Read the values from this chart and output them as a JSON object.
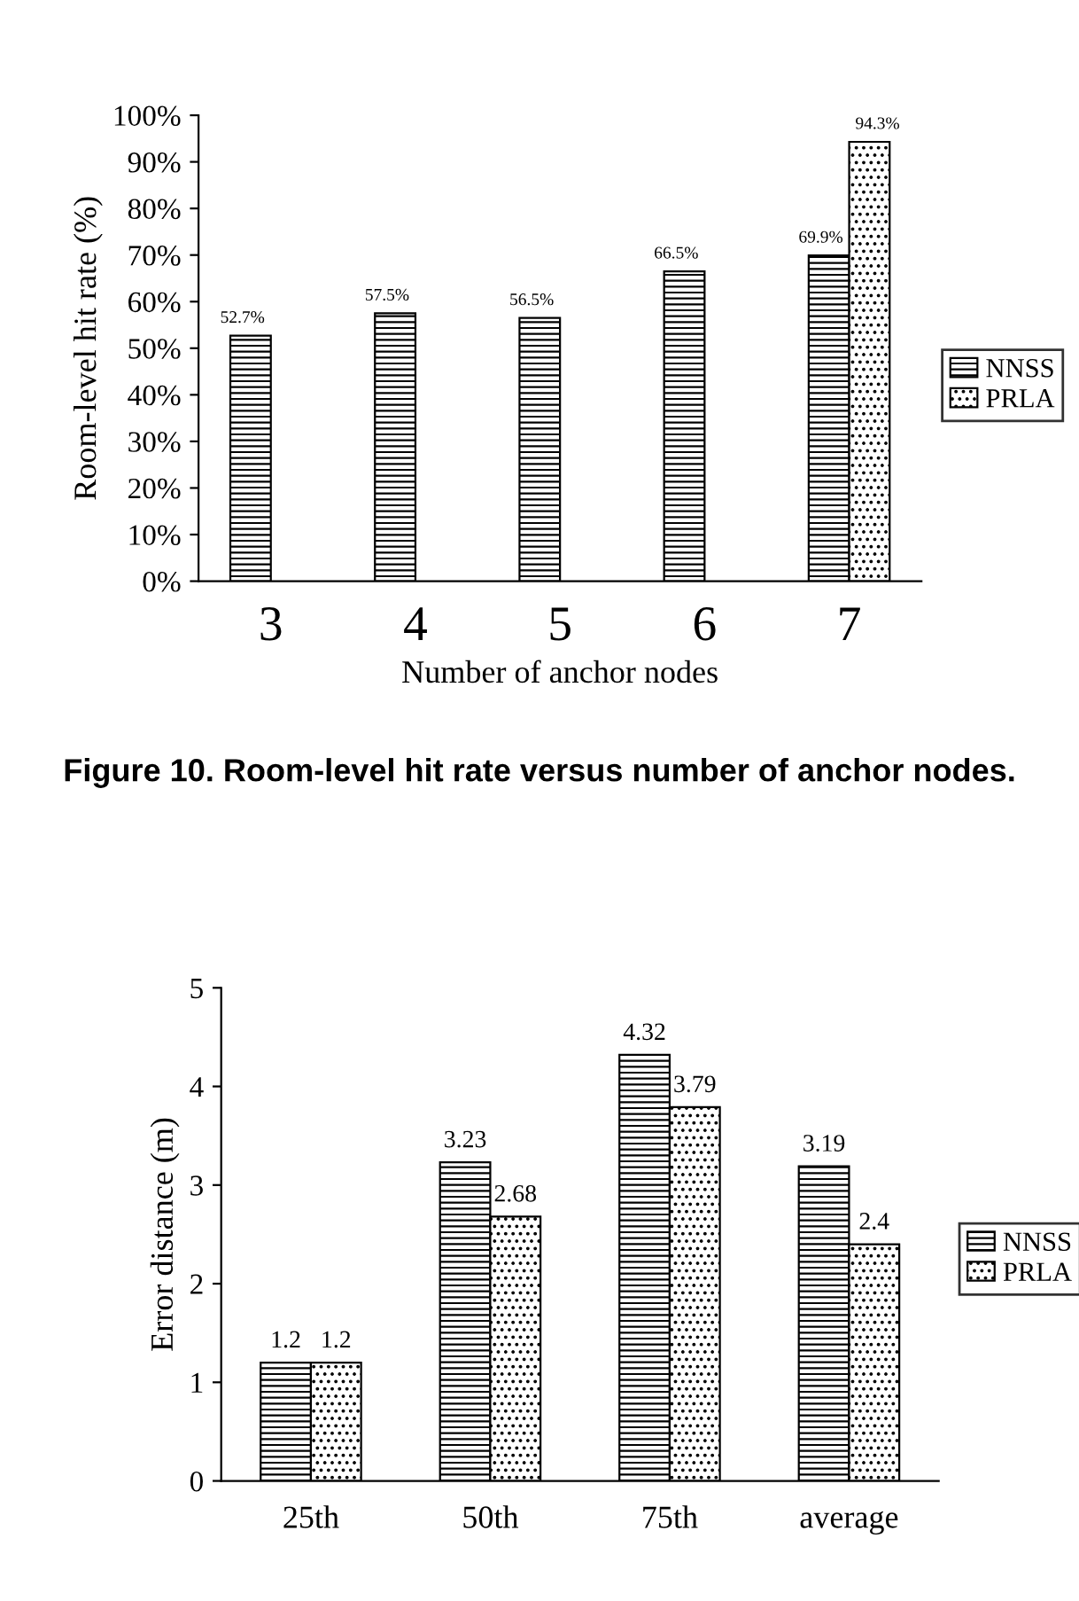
{
  "chart_data": [
    {
      "type": "bar",
      "categories": [
        "3",
        "4",
        "5",
        "6",
        "7"
      ],
      "xlabel": "Number of anchor nodes",
      "ylabel": "Room-level hit rate (%)",
      "series": [
        {
          "name": "NNSS",
          "color": "#000000",
          "values": [
            52.7,
            57.5,
            56.5,
            66.5,
            69.9
          ],
          "value_labels": [
            "52.7%",
            "57.5%",
            "56.5%",
            "66.5%",
            "69.9%"
          ]
        },
        {
          "name": "PRLA",
          "color": "#000000",
          "values": [
            null,
            null,
            null,
            null,
            94.3
          ],
          "value_labels": [
            null,
            null,
            null,
            null,
            "94.3%"
          ]
        }
      ],
      "ylim": [
        0,
        100
      ],
      "yticks": [
        {
          "value": 0,
          "label": "0%"
        },
        {
          "value": 10,
          "label": "10%"
        },
        {
          "value": 20,
          "label": "20%"
        },
        {
          "value": 30,
          "label": "30%"
        },
        {
          "value": 40,
          "label": "40%"
        },
        {
          "value": 50,
          "label": "50%"
        },
        {
          "value": 60,
          "label": "60%"
        },
        {
          "value": 70,
          "label": "70%"
        },
        {
          "value": 80,
          "label": "80%"
        },
        {
          "value": 90,
          "label": "90%"
        },
        {
          "value": 100,
          "label": "100%"
        }
      ],
      "legend": "right",
      "grid": false,
      "annotations": [
        "Figure 10. Room-level hit rate versus number of anchor nodes."
      ]
    },
    {
      "type": "bar",
      "categories": [
        "25th",
        "50th",
        "75th",
        "average"
      ],
      "ylabel": "Error distance (m)",
      "series": [
        {
          "name": "NNSS",
          "color": "#000000",
          "values": [
            1.2,
            3.23,
            4.32,
            3.19
          ]
        },
        {
          "name": "PRLA",
          "color": "#000000",
          "values": [
            1.2,
            2.68,
            3.79,
            2.4
          ]
        }
      ],
      "ylim": [
        0,
        5
      ],
      "yticks": [
        0,
        1,
        2,
        3,
        4,
        5
      ],
      "data_labels": true,
      "legend": "right",
      "grid": false
    }
  ]
}
